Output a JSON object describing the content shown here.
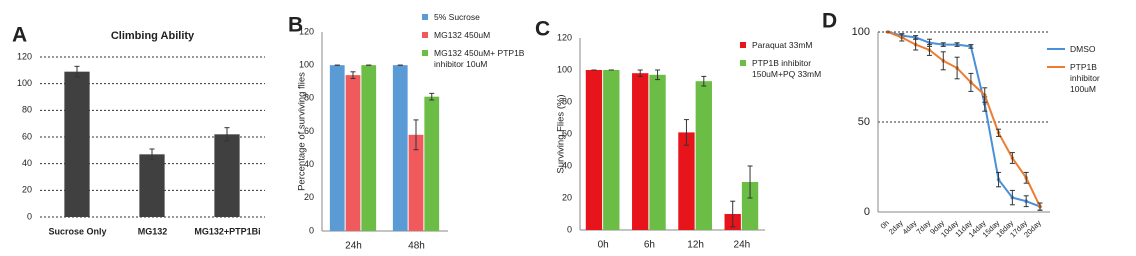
{
  "chart_data": [
    {
      "type": "bar",
      "panel_label": "A",
      "title": "Climbing Ability",
      "categories": [
        "Sucrose Only",
        "MG132",
        "MG132+PTP1Bi"
      ],
      "values": [
        109,
        47,
        62
      ],
      "errors": [
        4,
        4,
        5
      ],
      "color": "#404040",
      "ylim": [
        0,
        120
      ],
      "yticks": [
        0,
        20,
        40,
        60,
        80,
        100,
        120
      ],
      "grid": true
    },
    {
      "type": "bar",
      "panel_label": "B",
      "y_label": "Percentage of surviving  flies",
      "categories": [
        "24h",
        "48h"
      ],
      "series": [
        {
          "name": "5% Sucrose",
          "color": "#5b9bd5",
          "values": [
            100,
            100
          ],
          "errors": [
            0,
            0
          ]
        },
        {
          "name": "MG132 450uM",
          "color": "#f05a5c",
          "values": [
            94,
            58
          ],
          "errors": [
            2,
            9
          ]
        },
        {
          "name": "MG132 450uM+ PTP1B inhibitor 10uM",
          "color": "#6cbd45",
          "values": [
            100,
            81
          ],
          "errors": [
            0,
            2
          ]
        }
      ],
      "ylim": [
        0,
        120
      ],
      "yticks": [
        0,
        20,
        40,
        60,
        80,
        100,
        120
      ],
      "grid": false
    },
    {
      "type": "bar",
      "panel_label": "C",
      "y_label": "Surviving Flies (%)",
      "categories": [
        "0h",
        "6h",
        "12h",
        "24h"
      ],
      "series": [
        {
          "name": "Paraquat 33mM",
          "color": "#e8141c",
          "values": [
            100,
            98,
            61,
            10
          ],
          "errors": [
            0,
            2,
            8,
            8
          ]
        },
        {
          "name": "PTP1B inhibitor 150uM+PQ 33mM",
          "color": "#6cbd45",
          "values": [
            100,
            97,
            93,
            30
          ],
          "errors": [
            0,
            3,
            3,
            10
          ]
        }
      ],
      "ylim": [
        0,
        120
      ],
      "yticks": [
        0,
        20,
        40,
        60,
        80,
        100,
        120
      ],
      "grid": false
    },
    {
      "type": "line",
      "panel_label": "D",
      "categories": [
        "0h",
        "2day",
        "4day",
        "7day",
        "9day",
        "10day",
        "11day",
        "14day",
        "15day",
        "16day",
        "17day",
        "20day"
      ],
      "series": [
        {
          "name": "DMSO",
          "color": "#4a90d9",
          "values": [
            100,
            98,
            97,
            94,
            93,
            93,
            92,
            60,
            18,
            8,
            6,
            3
          ],
          "errors": [
            0,
            1,
            1,
            2,
            1,
            1,
            1,
            4,
            4,
            4,
            3,
            2
          ]
        },
        {
          "name": "PTP1B inhibitor 100uM",
          "color": "#ed7d31",
          "values": [
            100,
            97,
            93,
            90,
            84,
            80,
            72,
            65,
            44,
            30,
            19,
            3
          ],
          "errors": [
            0,
            2,
            3,
            3,
            5,
            6,
            5,
            4,
            2,
            3,
            3,
            2
          ]
        }
      ],
      "ylim": [
        0,
        100
      ],
      "yticks": [
        0,
        50,
        100
      ],
      "grid": true
    }
  ]
}
